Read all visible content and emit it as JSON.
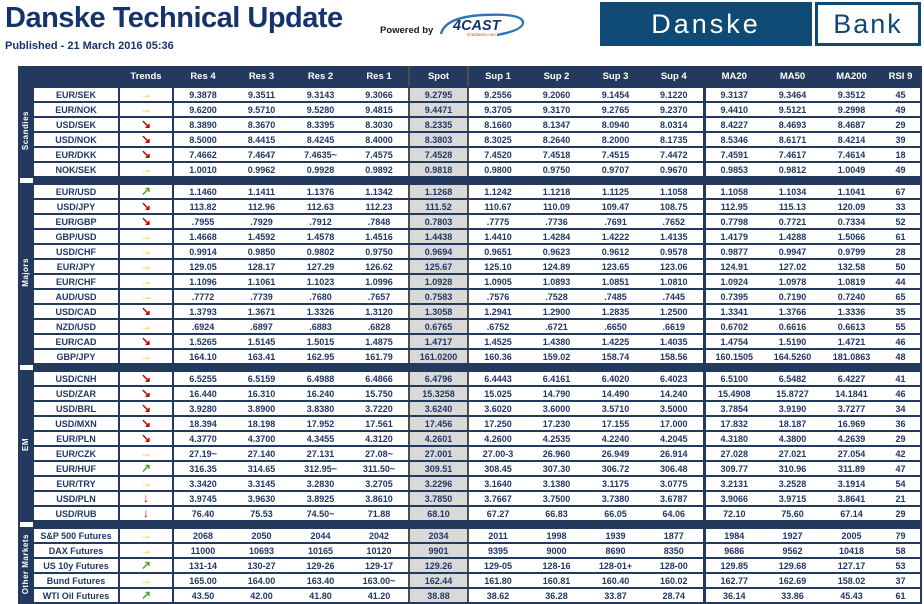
{
  "header": {
    "title": "Danske Technical Update",
    "published": "Published - 21 March 2016 05:36",
    "powered_by": "Powered by",
    "vendor_name": "4CAST",
    "vendor_sub": "4castweb.com",
    "logo_danske": "Danske",
    "logo_bank": "Bank"
  },
  "colors": {
    "navy_chrome": "#24395E",
    "text_navy": "#1F3864",
    "logo_blue": "#0E4A73",
    "spot_bg": "#D9D9D9",
    "trend_up": "#54A021",
    "trend_flat": "#FFC000",
    "trend_down": "#C00000"
  },
  "trends": {
    "flat": {
      "glyph": "→",
      "color": "#FFC000"
    },
    "down": {
      "glyph": "↘",
      "color": "#C00000"
    },
    "up": {
      "glyph": "↗",
      "color": "#54A021"
    },
    "strong_down": {
      "glyph": "↓",
      "color": "#C00000"
    }
  },
  "table": {
    "columns": [
      "Trends",
      "Res 4",
      "Res 3",
      "Res 2",
      "Res 1",
      "Spot",
      "Sup 1",
      "Sup 2",
      "Sup 3",
      "Sup 4",
      "MA20",
      "MA50",
      "MA200",
      "RSI 9"
    ],
    "groups": [
      {
        "name": "Scandies",
        "rows": [
          {
            "pair": "EUR/SEK",
            "trend": "flat",
            "values": [
              "9.3878",
              "9.3511",
              "9.3143",
              "9.3066",
              "9.2795",
              "9.2556",
              "9.2060",
              "9.1454",
              "9.1220",
              "9.3137",
              "9.3464",
              "9.3512",
              "45"
            ]
          },
          {
            "pair": "EUR/NOK",
            "trend": "flat",
            "values": [
              "9.6200",
              "9.5710",
              "9.5280",
              "9.4815",
              "9.4471",
              "9.3705",
              "9.3170",
              "9.2765",
              "9.2370",
              "9.4410",
              "9.5121",
              "9.2998",
              "49"
            ]
          },
          {
            "pair": "USD/SEK",
            "trend": "down",
            "values": [
              "8.3890",
              "8.3670",
              "8.3395",
              "8.3030",
              "8.2335",
              "8.1660",
              "8.1347",
              "8.0940",
              "8.0314",
              "8.4227",
              "8.4693",
              "8.4687",
              "29"
            ]
          },
          {
            "pair": "USD/NOK",
            "trend": "down",
            "values": [
              "8.5000",
              "8.4415",
              "8.4245",
              "8.4000",
              "8.3803",
              "8.3025",
              "8.2640",
              "8.2000",
              "8.1735",
              "8.5346",
              "8.6171",
              "8.4214",
              "39"
            ]
          },
          {
            "pair": "EUR/DKK",
            "trend": "down",
            "values": [
              "7.4662",
              "7.4647",
              "7.4635~",
              "7.4575",
              "7.4528",
              "7.4520",
              "7.4518",
              "7.4515",
              "7.4472",
              "7.4591",
              "7.4617",
              "7.4614",
              "18"
            ]
          },
          {
            "pair": "NOK/SEK",
            "trend": "flat",
            "values": [
              "1.0010",
              "0.9962",
              "0.9928",
              "0.9892",
              "0.9818",
              "0.9800",
              "0.9750",
              "0.9707",
              "0.9670",
              "0.9853",
              "0.9812",
              "1.0049",
              "49"
            ]
          }
        ]
      },
      {
        "name": "Majors",
        "rows": [
          {
            "pair": "EUR/USD",
            "trend": "up",
            "values": [
              "1.1460",
              "1.1411",
              "1.1376",
              "1.1342",
              "1.1268",
              "1.1242",
              "1.1218",
              "1.1125",
              "1.1058",
              "1.1058",
              "1.1034",
              "1.1041",
              "67"
            ]
          },
          {
            "pair": "USD/JPY",
            "trend": "down",
            "values": [
              "113.82",
              "112.96",
              "112.63",
              "112.23",
              "111.52",
              "110.67",
              "110.09",
              "109.47",
              "108.75",
              "112.95",
              "115.13",
              "120.09",
              "33"
            ]
          },
          {
            "pair": "EUR/GBP",
            "trend": "down",
            "values": [
              ".7955",
              ".7929",
              ".7912",
              ".7848",
              "0.7803",
              ".7775",
              ".7736",
              ".7691",
              ".7652",
              "0.7798",
              "0.7721",
              "0.7334",
              "52"
            ]
          },
          {
            "pair": "GBP/USD",
            "trend": "flat",
            "values": [
              "1.4668",
              "1.4592",
              "1.4578",
              "1.4516",
              "1.4438",
              "1.4410",
              "1.4284",
              "1.4222",
              "1.4135",
              "1.4179",
              "1.4288",
              "1.5066",
              "61"
            ]
          },
          {
            "pair": "USD/CHF",
            "trend": "flat",
            "values": [
              "0.9914",
              "0.9850",
              "0.9802",
              "0.9750",
              "0.9694",
              "0.9651",
              "0.9623",
              "0.9612",
              "0.9578",
              "0.9877",
              "0.9947",
              "0.9799",
              "28"
            ]
          },
          {
            "pair": "EUR/JPY",
            "trend": "flat",
            "values": [
              "129.05",
              "128.17",
              "127.29",
              "126.62",
              "125.67",
              "125.10",
              "124.89",
              "123.65",
              "123.06",
              "124.91",
              "127.02",
              "132.58",
              "50"
            ]
          },
          {
            "pair": "EUR/CHF",
            "trend": "flat",
            "values": [
              "1.1096",
              "1.1061",
              "1.1023",
              "1.0996",
              "1.0928",
              "1.0905",
              "1.0893",
              "1.0851",
              "1.0810",
              "1.0924",
              "1.0978",
              "1.0819",
              "44"
            ]
          },
          {
            "pair": "AUD/USD",
            "trend": "flat",
            "values": [
              ".7772",
              ".7739",
              ".7680",
              ".7657",
              "0.7583",
              ".7576",
              ".7528",
              ".7485",
              ".7445",
              "0.7395",
              "0.7190",
              "0.7240",
              "65"
            ]
          },
          {
            "pair": "USD/CAD",
            "trend": "down",
            "values": [
              "1.3793",
              "1.3671",
              "1.3326",
              "1.3120",
              "1.3058",
              "1.2941",
              "1.2900",
              "1.2835",
              "1.2500",
              "1.3341",
              "1.3766",
              "1.3336",
              "35"
            ]
          },
          {
            "pair": "NZD/USD",
            "trend": "flat",
            "values": [
              ".6924",
              ".6897",
              ".6883",
              ".6828",
              "0.6765",
              ".6752",
              ".6721",
              ".6650",
              ".6619",
              "0.6702",
              "0.6616",
              "0.6613",
              "55"
            ]
          },
          {
            "pair": "EUR/CAD",
            "trend": "down",
            "values": [
              "1.5265",
              "1.5145",
              "1.5015",
              "1.4875",
              "1.4717",
              "1.4525",
              "1.4380",
              "1.4225",
              "1.4035",
              "1.4754",
              "1.5190",
              "1.4721",
              "46"
            ]
          },
          {
            "pair": "GBP/JPY",
            "trend": "flat",
            "values": [
              "164.10",
              "163.41",
              "162.95",
              "161.79",
              "161.0200",
              "160.36",
              "159.02",
              "158.74",
              "158.56",
              "160.1505",
              "164.5260",
              "181.0863",
              "48"
            ]
          }
        ]
      },
      {
        "name": "EM",
        "rows": [
          {
            "pair": "USD/CNH",
            "trend": "down",
            "values": [
              "6.5255",
              "6.5159",
              "6.4988",
              "6.4866",
              "6.4796",
              "6.4443",
              "6.4161",
              "6.4020",
              "6.4023",
              "6.5100",
              "6.5482",
              "6.4227",
              "41"
            ]
          },
          {
            "pair": "USD/ZAR",
            "trend": "down",
            "values": [
              "16.440",
              "16.310",
              "16.240",
              "15.750",
              "15.3258",
              "15.025",
              "14.790",
              "14.490",
              "14.240",
              "15.4908",
              "15.8727",
              "14.1841",
              "46"
            ]
          },
          {
            "pair": "USD/BRL",
            "trend": "down",
            "values": [
              "3.9280",
              "3.8900",
              "3.8380",
              "3.7220",
              "3.6240",
              "3.6020",
              "3.6000",
              "3.5710",
              "3.5000",
              "3.7854",
              "3.9190",
              "3.7277",
              "34"
            ]
          },
          {
            "pair": "USD/MXN",
            "trend": "down",
            "values": [
              "18.394",
              "18.198",
              "17.952",
              "17.561",
              "17.456",
              "17.250",
              "17.230",
              "17.155",
              "17.000",
              "17.832",
              "18.187",
              "16.969",
              "36"
            ]
          },
          {
            "pair": "EUR/PLN",
            "trend": "down",
            "values": [
              "4.3770",
              "4.3700",
              "4.3455",
              "4.3120",
              "4.2601",
              "4.2600",
              "4.2535",
              "4.2240",
              "4.2045",
              "4.3180",
              "4.3800",
              "4.2639",
              "29"
            ]
          },
          {
            "pair": "EUR/CZK",
            "trend": "flat",
            "values": [
              "27.19~",
              "27.140",
              "27.131",
              "27.08~",
              "27.001",
              "27.00-3",
              "26.960",
              "26.949",
              "26.914",
              "27.028",
              "27.021",
              "27.054",
              "42"
            ]
          },
          {
            "pair": "EUR/HUF",
            "trend": "up",
            "values": [
              "316.35",
              "314.65",
              "312.95~",
              "311.50~",
              "309.51",
              "308.45",
              "307.30",
              "306.72",
              "306.48",
              "309.77",
              "310.96",
              "311.89",
              "47"
            ]
          },
          {
            "pair": "EUR/TRY",
            "trend": "flat",
            "values": [
              "3.3420",
              "3.3145",
              "3.2830",
              "3.2705",
              "3.2296",
              "3.1640",
              "3.1380",
              "3.1175",
              "3.0775",
              "3.2131",
              "3.2528",
              "3.1914",
              "54"
            ]
          },
          {
            "pair": "USD/PLN",
            "trend": "strong_down",
            "values": [
              "3.9745",
              "3.9630",
              "3.8925",
              "3.8610",
              "3.7850",
              "3.7667",
              "3.7500",
              "3.7380",
              "3.6787",
              "3.9066",
              "3.9715",
              "3.8641",
              "21"
            ]
          },
          {
            "pair": "USD/RUB",
            "trend": "strong_down",
            "values": [
              "76.40",
              "75.53",
              "74.50~",
              "71.88",
              "68.10",
              "67.27",
              "66.83",
              "66.05",
              "64.06",
              "72.10",
              "75.60",
              "67.14",
              "29"
            ]
          }
        ]
      },
      {
        "name": "Other Markets",
        "rows": [
          {
            "pair": "S&P 500 Futures",
            "trend": "flat",
            "values": [
              "2068",
              "2050",
              "2044",
              "2042",
              "2034",
              "2011",
              "1998",
              "1939",
              "1877",
              "1984",
              "1927",
              "2005",
              "79"
            ]
          },
          {
            "pair": "DAX Futures",
            "trend": "flat",
            "values": [
              "11000",
              "10693",
              "10165",
              "10120",
              "9901",
              "9395",
              "9000",
              "8690",
              "8350",
              "9686",
              "9562",
              "10418",
              "58"
            ]
          },
          {
            "pair": "US 10y Futures",
            "trend": "up",
            "values": [
              "131-14",
              "130-27",
              "129-26",
              "129-17",
              "129.26",
              "129-05",
              "128-16",
              "128-01+",
              "128-00",
              "129.85",
              "129.68",
              "127.17",
              "53"
            ]
          },
          {
            "pair": "Bund Futures",
            "trend": "flat",
            "values": [
              "165.00",
              "164.00",
              "163.40",
              "163.00~",
              "162.44",
              "161.80",
              "160.81",
              "160.40",
              "160.02",
              "162.77",
              "162.69",
              "158.02",
              "37"
            ]
          },
          {
            "pair": "WTI Oil Futures",
            "trend": "up",
            "values": [
              "43.50",
              "42.00",
              "41.80",
              "41.20",
              "38.88",
              "38.62",
              "36.28",
              "33.87",
              "28.74",
              "36.14",
              "33.86",
              "45.43",
              "61"
            ]
          }
        ]
      }
    ]
  }
}
